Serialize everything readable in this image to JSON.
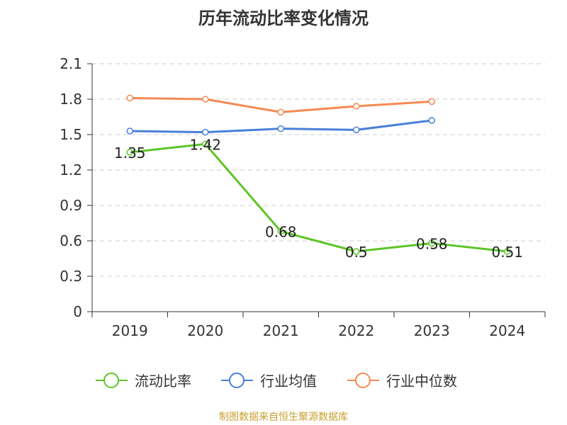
{
  "chart_data": {
    "type": "line",
    "title": "历年流动比率变化情况",
    "categories": [
      "2019",
      "2020",
      "2021",
      "2022",
      "2023",
      "2024"
    ],
    "ylim": [
      0,
      2.1
    ],
    "yticks": [
      "0",
      "0.3",
      "0.6",
      "0.9",
      "1.2",
      "1.5",
      "1.8",
      "2.1"
    ],
    "grid": true,
    "legend_position": "bottom",
    "series": [
      {
        "name": "流动比率",
        "color": "#5dc528",
        "values": [
          1.35,
          1.42,
          0.68,
          0.51,
          0.58,
          0.51
        ],
        "labels": [
          "1.35",
          "1.42",
          "0.68",
          "0.5",
          "0.58",
          "0.51"
        ]
      },
      {
        "name": "行业均值",
        "color": "#4a7fd9",
        "values": [
          1.53,
          1.52,
          1.55,
          1.54,
          1.62,
          null
        ]
      },
      {
        "name": "行业中位数",
        "color": "#f58a54",
        "values": [
          1.81,
          1.8,
          1.69,
          1.74,
          1.78,
          null
        ]
      }
    ]
  },
  "source": "制图数据来自恒生聚源数据库"
}
